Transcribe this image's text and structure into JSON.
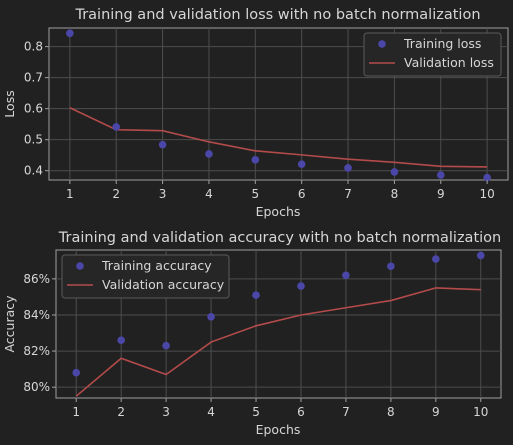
{
  "chart_data": [
    {
      "type": "scatter+line",
      "title": "Training and validation loss with no batch normalization",
      "xlabel": "Epochs",
      "ylabel": "Loss",
      "x": [
        1,
        2,
        3,
        4,
        5,
        6,
        7,
        8,
        9,
        10
      ],
      "xticks": [
        "1",
        "2",
        "3",
        "4",
        "5",
        "6",
        "7",
        "8",
        "9",
        "10"
      ],
      "yticks": [
        0.4,
        0.5,
        0.6,
        0.7,
        0.8
      ],
      "ytick_labels": [
        "0.4",
        "0.5",
        "0.6",
        "0.7",
        "0.8"
      ],
      "ylim": [
        0.37,
        0.86
      ],
      "xlim": [
        0.55,
        10.45
      ],
      "grid": true,
      "legend_position": "top-right",
      "series": [
        {
          "name": "Training loss",
          "kind": "scatter",
          "color": "#4b47a8",
          "values": [
            0.843,
            0.541,
            0.484,
            0.454,
            0.435,
            0.421,
            0.409,
            0.396,
            0.386,
            0.378
          ]
        },
        {
          "name": "Validation loss",
          "kind": "line",
          "color": "#b44b4b",
          "values": [
            0.603,
            0.532,
            0.529,
            0.493,
            0.464,
            0.451,
            0.437,
            0.427,
            0.414,
            0.412
          ]
        }
      ]
    },
    {
      "type": "scatter+line",
      "title": "Training and validation accuracy with no batch normalization",
      "xlabel": "Epochs",
      "ylabel": "Accuracy",
      "x": [
        1,
        2,
        3,
        4,
        5,
        6,
        7,
        8,
        9,
        10
      ],
      "xticks": [
        "1",
        "2",
        "3",
        "4",
        "5",
        "6",
        "7",
        "8",
        "9",
        "10"
      ],
      "yticks": [
        80,
        82,
        84,
        86
      ],
      "ytick_labels": [
        "80%",
        "82%",
        "84%",
        "86%"
      ],
      "ylim": [
        79.4,
        87.6
      ],
      "xlim": [
        0.55,
        10.45
      ],
      "grid": true,
      "legend_position": "top-left",
      "series": [
        {
          "name": "Training accuracy",
          "kind": "scatter",
          "color": "#4b47a8",
          "values": [
            80.8,
            82.6,
            82.3,
            83.9,
            85.1,
            85.6,
            86.2,
            86.7,
            87.1,
            87.3
          ]
        },
        {
          "name": "Validation accuracy",
          "kind": "line",
          "color": "#b44b4b",
          "values": [
            79.5,
            81.6,
            80.7,
            82.5,
            83.4,
            84.0,
            84.4,
            84.8,
            85.5,
            85.4
          ]
        }
      ]
    }
  ]
}
